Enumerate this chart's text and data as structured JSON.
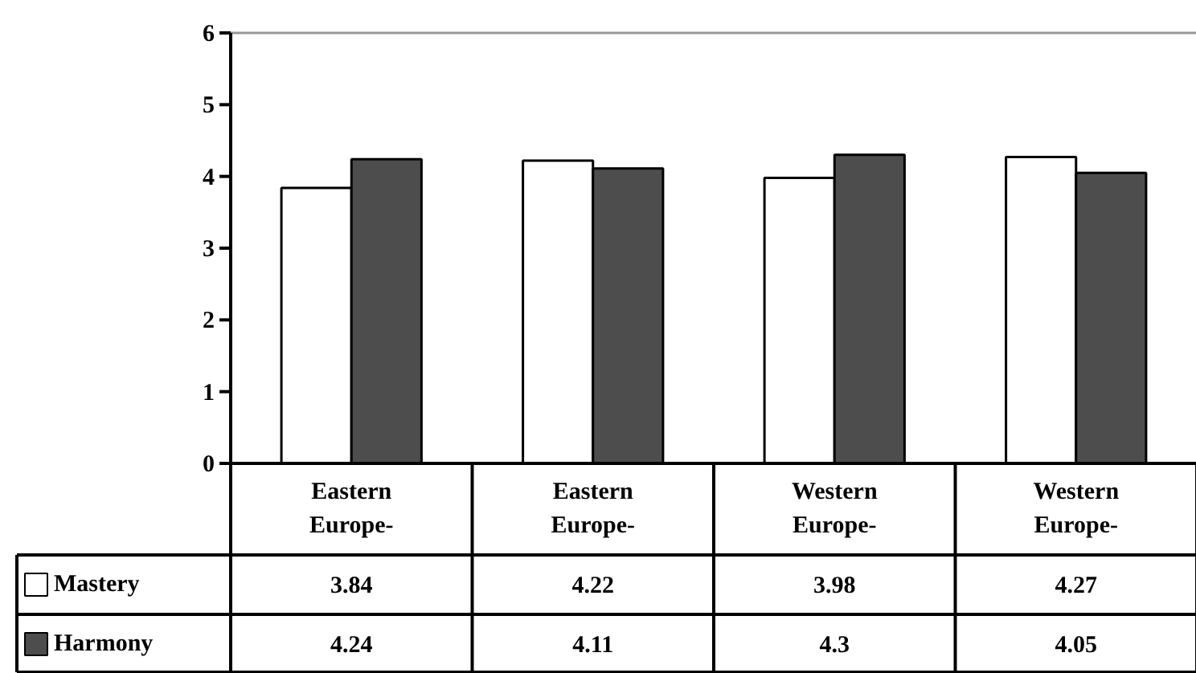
{
  "chart_data": {
    "type": "bar",
    "categories": [
      "Eastern Europe-",
      "Eastern Europe-",
      "Western Europe-",
      "Western Europe-"
    ],
    "series": [
      {
        "name": "Mastery",
        "color": "#ffffff",
        "values": [
          3.84,
          4.22,
          3.98,
          4.27
        ]
      },
      {
        "name": "Harmony",
        "color": "#4d4d4d",
        "values": [
          4.24,
          4.11,
          4.3,
          4.05
        ]
      }
    ],
    "ylim": [
      0,
      6
    ],
    "yticks": [
      0,
      1,
      2,
      3,
      4,
      5,
      6
    ],
    "grid": false,
    "legend": "bottom left",
    "data_labels": true
  }
}
